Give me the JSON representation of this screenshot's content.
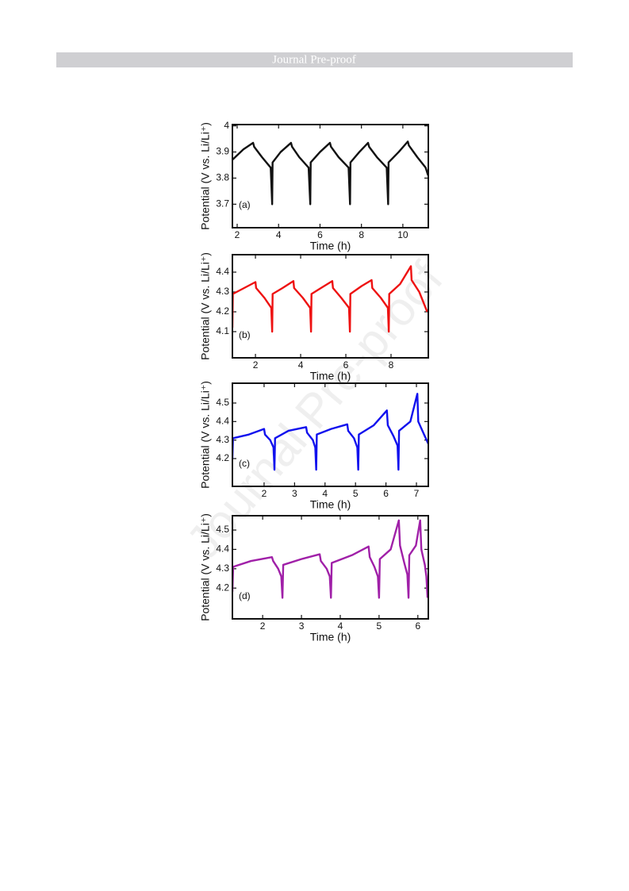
{
  "header": "Journal Pre-proof",
  "watermark": "Journal Pre-proof",
  "chart_data": [
    {
      "type": "line",
      "panel_label": "(a)",
      "xlabel": "Time (h)",
      "ylabel": "Potential (V vs. Li/Li⁺)",
      "xlim": [
        1.77,
        11.23
      ],
      "ylim": [
        3.61,
        4.005
      ],
      "xticks": [
        2,
        4,
        6,
        8,
        10
      ],
      "yticks": [
        3.7,
        3.8,
        3.9,
        4
      ],
      "x": [
        1.77,
        2.3,
        2.77,
        2.82,
        3.2,
        3.62,
        3.69,
        3.71,
        4.1,
        4.6,
        4.65,
        5.0,
        5.45,
        5.53,
        5.55,
        6.0,
        6.48,
        6.53,
        6.9,
        7.38,
        7.45,
        7.47,
        7.9,
        8.32,
        8.37,
        8.75,
        9.22,
        9.29,
        9.31,
        9.8,
        10.24,
        10.29,
        10.7,
        11.1,
        11.22
      ],
      "series": [
        {
          "color": "#111111",
          "values": [
            3.87,
            3.91,
            3.935,
            3.92,
            3.88,
            3.84,
            3.7,
            3.86,
            3.9,
            3.935,
            3.92,
            3.88,
            3.84,
            3.7,
            3.86,
            3.9,
            3.935,
            3.92,
            3.88,
            3.84,
            3.7,
            3.86,
            3.9,
            3.935,
            3.92,
            3.88,
            3.84,
            3.7,
            3.86,
            3.9,
            3.94,
            3.925,
            3.88,
            3.84,
            3.81
          ]
        }
      ]
    },
    {
      "type": "line",
      "panel_label": "(b)",
      "xlabel": "Time (h)",
      "ylabel": "Potential (V vs. Li/Li⁺)",
      "xlim": [
        0.98,
        9.65
      ],
      "ylim": [
        3.968,
        4.488
      ],
      "xticks": [
        2,
        4,
        6,
        8
      ],
      "yticks": [
        4.1,
        4.2,
        4.3,
        4.4
      ],
      "x": [
        0.98,
        1.0,
        1.5,
        2.0,
        2.03,
        2.4,
        2.7,
        2.74,
        2.76,
        3.2,
        3.68,
        3.71,
        4.1,
        4.42,
        4.46,
        4.48,
        4.9,
        5.4,
        5.43,
        5.8,
        6.14,
        6.18,
        6.2,
        6.7,
        7.14,
        7.17,
        7.55,
        7.86,
        7.9,
        7.92,
        8.4,
        8.88,
        8.91,
        9.25,
        9.6
      ],
      "series": [
        {
          "color": "#ee1111",
          "values": [
            4.12,
            4.29,
            4.32,
            4.35,
            4.32,
            4.27,
            4.22,
            4.1,
            4.29,
            4.32,
            4.355,
            4.32,
            4.27,
            4.22,
            4.1,
            4.29,
            4.32,
            4.355,
            4.32,
            4.27,
            4.22,
            4.1,
            4.29,
            4.33,
            4.36,
            4.32,
            4.27,
            4.22,
            4.1,
            4.29,
            4.34,
            4.43,
            4.36,
            4.3,
            4.2
          ]
        }
      ]
    },
    {
      "type": "line",
      "panel_label": "(c)",
      "xlabel": "Time (h)",
      "ylabel": "Potential (V vs. Li/Li⁺)",
      "xlim": [
        0.96,
        7.39
      ],
      "ylim": [
        4.05,
        4.607
      ],
      "xticks": [
        2,
        3,
        4,
        5,
        6,
        7
      ],
      "yticks": [
        4.2,
        4.3,
        4.4,
        4.5
      ],
      "x": [
        0.96,
        0.98,
        1.5,
        2.0,
        2.03,
        2.2,
        2.31,
        2.34,
        2.36,
        2.8,
        3.38,
        3.41,
        3.6,
        3.68,
        3.71,
        3.73,
        4.2,
        4.73,
        4.76,
        4.95,
        5.06,
        5.09,
        5.11,
        5.6,
        6.03,
        6.06,
        6.25,
        6.38,
        6.41,
        6.43,
        6.8,
        7.03,
        7.06,
        7.25,
        7.39
      ],
      "series": [
        {
          "color": "#1111ee",
          "values": [
            4.2,
            4.31,
            4.33,
            4.36,
            4.33,
            4.3,
            4.26,
            4.14,
            4.31,
            4.35,
            4.37,
            4.34,
            4.3,
            4.26,
            4.14,
            4.33,
            4.36,
            4.385,
            4.35,
            4.31,
            4.26,
            4.14,
            4.33,
            4.38,
            4.46,
            4.38,
            4.32,
            4.27,
            4.14,
            4.35,
            4.4,
            4.55,
            4.4,
            4.33,
            4.28
          ]
        }
      ]
    },
    {
      "type": "line",
      "panel_label": "(d)",
      "xlabel": "Time (h)",
      "ylabel": "Potential (V vs. Li/Li⁺)",
      "xlim": [
        1.22,
        6.27
      ],
      "ylim": [
        4.041,
        4.574
      ],
      "xticks": [
        2,
        3,
        4,
        5,
        6
      ],
      "yticks": [
        4.2,
        4.3,
        4.4,
        4.5
      ],
      "x": [
        1.22,
        1.24,
        1.7,
        2.24,
        2.27,
        2.4,
        2.48,
        2.51,
        2.53,
        3.0,
        3.47,
        3.5,
        3.65,
        3.73,
        3.76,
        3.78,
        4.3,
        4.73,
        4.76,
        4.88,
        4.97,
        5.0,
        5.02,
        5.3,
        5.51,
        5.54,
        5.65,
        5.73,
        5.76,
        5.78,
        5.95,
        6.06,
        6.09,
        6.18,
        6.22,
        6.25
      ],
      "series": [
        {
          "color": "#a020a8",
          "values": [
            4.18,
            4.31,
            4.34,
            4.36,
            4.34,
            4.3,
            4.26,
            4.15,
            4.32,
            4.35,
            4.375,
            4.34,
            4.3,
            4.26,
            4.15,
            4.33,
            4.37,
            4.415,
            4.36,
            4.31,
            4.26,
            4.15,
            4.35,
            4.4,
            4.55,
            4.42,
            4.33,
            4.27,
            4.15,
            4.37,
            4.42,
            4.55,
            4.4,
            4.32,
            4.26,
            4.15
          ]
        }
      ]
    }
  ]
}
